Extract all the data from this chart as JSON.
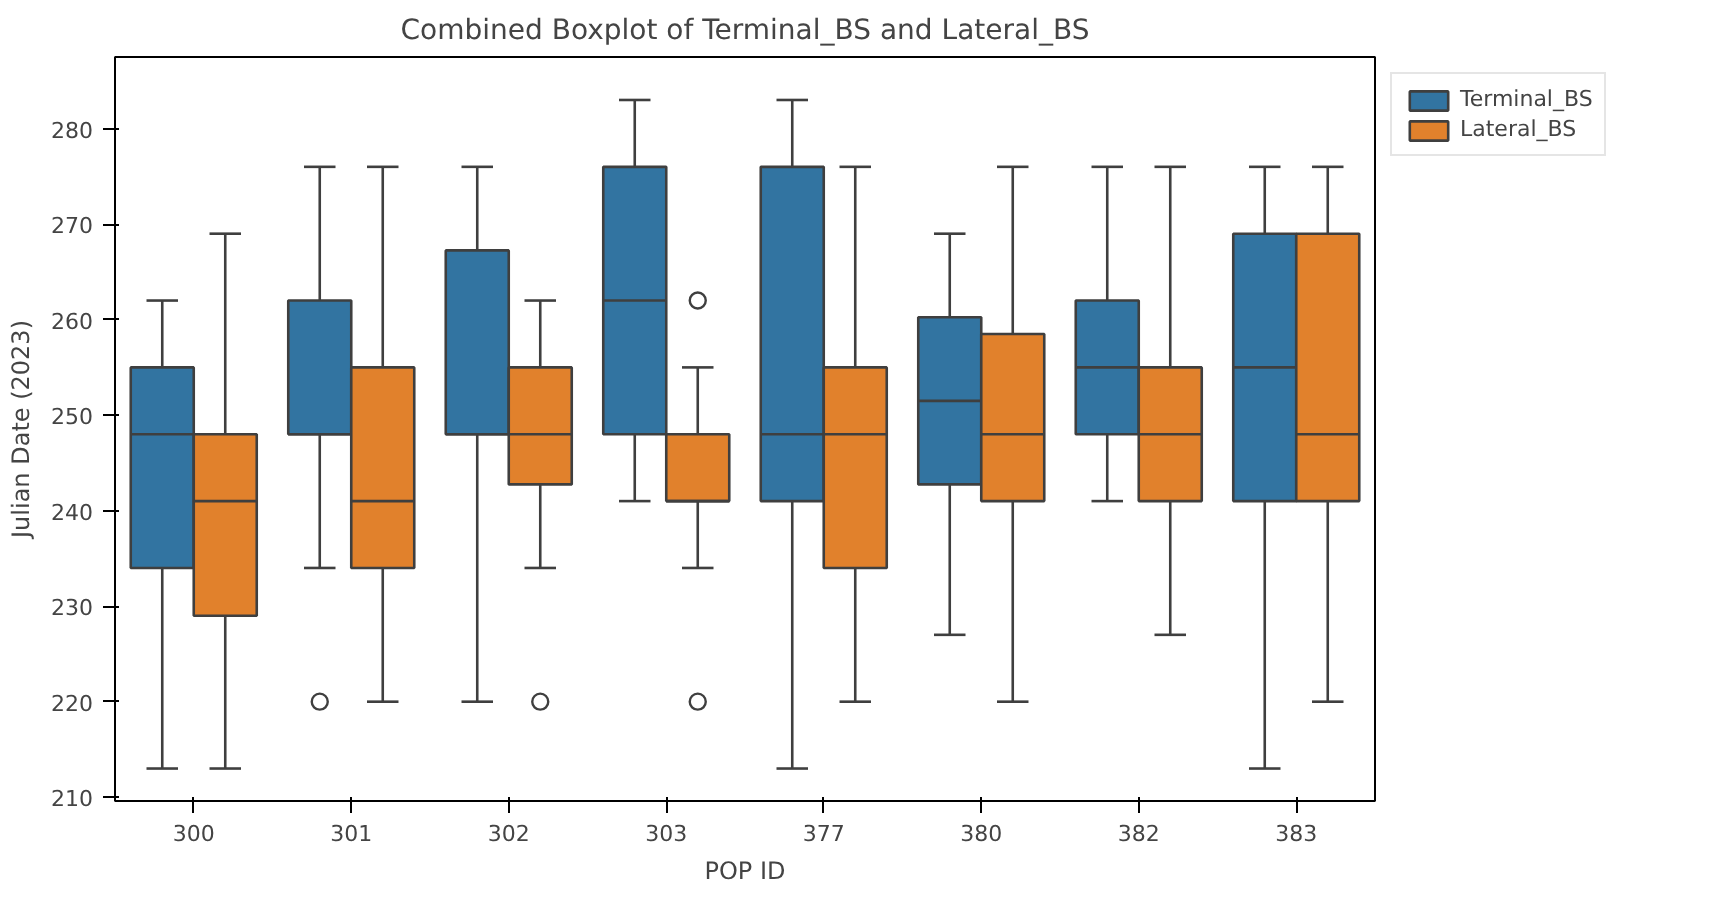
{
  "chart_data": {
    "type": "box",
    "title": "Combined Boxplot of Terminal_BS and Lateral_BS",
    "xlabel": "POP ID",
    "ylabel": "Julian Date (2023)",
    "categories": [
      "300",
      "301",
      "302",
      "303",
      "377",
      "380",
      "382",
      "383"
    ],
    "ylim": [
      209.6,
      287.5
    ],
    "yticks": [
      210,
      220,
      230,
      240,
      250,
      260,
      270,
      280
    ],
    "grid": false,
    "legend": "right",
    "series": [
      {
        "name": "Terminal_BS",
        "color": "#3274a1",
        "boxes": [
          {
            "low": 213,
            "q1": 234,
            "median": 248,
            "q3": 255,
            "high": 262
          },
          {
            "low": 234,
            "q1": 248,
            "median": 248,
            "q3": 262,
            "high": 276,
            "outliers": [
              220
            ]
          },
          {
            "low": 220,
            "q1": 248,
            "median": 248,
            "q3": 267.25,
            "high": 276
          },
          {
            "low": 241,
            "q1": 248,
            "median": 262,
            "q3": 276,
            "high": 283
          },
          {
            "low": 213,
            "q1": 241,
            "median": 248,
            "q3": 276,
            "high": 283
          },
          {
            "low": 227,
            "q1": 242.75,
            "median": 251.5,
            "q3": 260.25,
            "high": 269
          },
          {
            "low": 241,
            "q1": 248,
            "median": 255,
            "q3": 262,
            "high": 276
          },
          {
            "low": 213,
            "q1": 241,
            "median": 255,
            "q3": 269,
            "high": 276
          }
        ]
      },
      {
        "name": "Lateral_BS",
        "color": "#e1812c",
        "boxes": [
          {
            "low": 213,
            "q1": 229,
            "median": 241,
            "q3": 248,
            "high": 269
          },
          {
            "low": 220,
            "q1": 234,
            "median": 241,
            "q3": 255,
            "high": 276
          },
          {
            "low": 234,
            "q1": 242.75,
            "median": 248,
            "q3": 255,
            "high": 262,
            "outliers": [
              220
            ]
          },
          {
            "low": 234,
            "q1": 241,
            "median": 241,
            "q3": 248,
            "high": 255,
            "outliers": [
              262,
              220
            ]
          },
          {
            "low": 220,
            "q1": 234,
            "median": 248,
            "q3": 255,
            "high": 276
          },
          {
            "low": 220,
            "q1": 241,
            "median": 248,
            "q3": 258.5,
            "high": 276
          },
          {
            "low": 227,
            "q1": 241,
            "median": 248,
            "q3": 255,
            "high": 276
          },
          {
            "low": 220,
            "q1": 241,
            "median": 248,
            "q3": 269,
            "high": 276
          }
        ]
      }
    ]
  }
}
